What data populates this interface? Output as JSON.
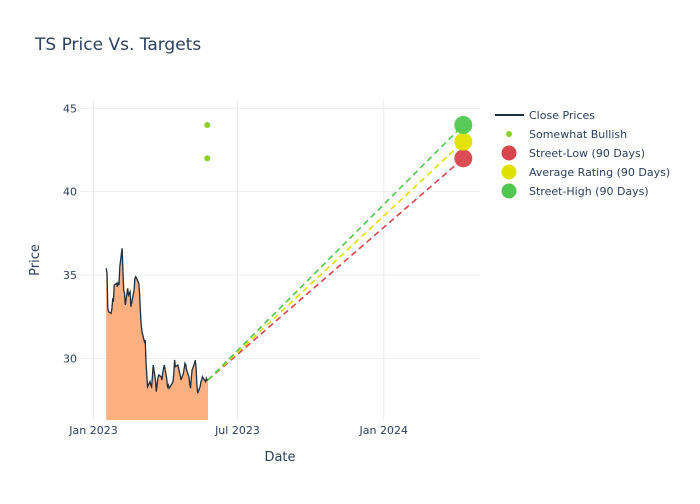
{
  "chart_data": {
    "type": "line",
    "title": "TS Price Vs. Targets",
    "xlabel": "Date",
    "ylabel": "Price",
    "xlim": [
      "2022-12-15",
      "2024-05-01"
    ],
    "ylim": [
      26.3,
      45.5
    ],
    "grid": true,
    "legend_position": "top-right",
    "x_ticks": [
      {
        "date": "2023-01-01",
        "label": "Jan 2023"
      },
      {
        "date": "2023-07-01",
        "label": "Jul 2023"
      },
      {
        "date": "2024-01-01",
        "label": "Jan 2024"
      }
    ],
    "y_ticks": [
      30,
      35,
      40,
      45
    ],
    "close_prices": {
      "name": "Close Prices",
      "color": "#1f2d3d",
      "fill_color": "#ffa26b",
      "x": [
        "2023-01-17",
        "2023-01-18",
        "2023-01-19",
        "2023-01-20",
        "2023-01-23",
        "2023-01-24",
        "2023-01-25",
        "2023-01-26",
        "2023-01-27",
        "2023-01-30",
        "2023-01-31",
        "2023-02-01",
        "2023-02-02",
        "2023-02-03",
        "2023-02-06",
        "2023-02-07",
        "2023-02-08",
        "2023-02-09",
        "2023-02-10",
        "2023-02-13",
        "2023-02-14",
        "2023-02-15",
        "2023-02-16",
        "2023-02-17",
        "2023-02-21",
        "2023-02-22",
        "2023-02-23",
        "2023-02-24",
        "2023-02-27",
        "2023-02-28",
        "2023-03-01",
        "2023-03-02",
        "2023-03-03",
        "2023-03-06",
        "2023-03-07",
        "2023-03-08",
        "2023-03-09",
        "2023-03-10",
        "2023-03-13",
        "2023-03-14",
        "2023-03-15",
        "2023-03-16",
        "2023-03-17",
        "2023-03-20",
        "2023-03-21",
        "2023-03-22",
        "2023-03-23",
        "2023-03-24",
        "2023-03-27",
        "2023-03-28",
        "2023-03-29",
        "2023-03-30",
        "2023-03-31",
        "2023-04-03",
        "2023-04-04",
        "2023-04-05",
        "2023-04-06",
        "2023-04-10",
        "2023-04-11",
        "2023-04-12",
        "2023-04-13",
        "2023-04-14",
        "2023-04-17",
        "2023-04-18",
        "2023-04-19",
        "2023-04-20",
        "2023-04-21",
        "2023-04-24",
        "2023-04-25",
        "2023-04-26",
        "2023-04-27",
        "2023-04-28",
        "2023-05-01",
        "2023-05-02",
        "2023-05-03",
        "2023-05-04",
        "2023-05-05",
        "2023-05-08",
        "2023-05-09",
        "2023-05-10",
        "2023-05-11",
        "2023-05-12",
        "2023-05-15",
        "2023-05-16",
        "2023-05-17",
        "2023-05-18",
        "2023-05-19",
        "2023-05-22",
        "2023-05-23",
        "2023-05-24",
        "2023-05-25"
      ],
      "y": [
        35.4,
        35.1,
        33.0,
        32.8,
        32.7,
        32.9,
        33.5,
        33.4,
        34.4,
        34.5,
        34.3,
        34.6,
        34.4,
        35.5,
        36.6,
        35.3,
        34.1,
        33.9,
        33.2,
        34.2,
        33.8,
        33.9,
        34.0,
        33.1,
        34.1,
        34.8,
        34.9,
        34.8,
        34.5,
        33.9,
        32.8,
        32.0,
        31.6,
        31.0,
        31.1,
        29.8,
        29.0,
        28.3,
        28.6,
        28.4,
        28.3,
        28.9,
        29.6,
        28.7,
        28.0,
        28.4,
        28.8,
        29.0,
        28.9,
        28.7,
        29.1,
        29.4,
        29.6,
        28.8,
        28.3,
        28.4,
        28.2,
        28.5,
        28.6,
        29.1,
        29.9,
        29.5,
        29.6,
        29.4,
        29.2,
        29.0,
        28.7,
        29.1,
        29.4,
        29.7,
        29.6,
        29.3,
        28.9,
        28.5,
        28.2,
        28.8,
        29.3,
        29.7,
        29.9,
        29.4,
        28.4,
        27.9,
        28.3,
        28.6,
        28.7,
        28.9,
        28.8,
        28.6,
        28.8,
        28.7,
        28.7
      ]
    },
    "somewhat_bullish": {
      "name": "Somewhat Bullish",
      "color": "#8cd02c",
      "points": [
        {
          "x": "2023-05-24",
          "y": 44.0
        },
        {
          "x": "2023-05-24",
          "y": 42.0
        }
      ]
    },
    "targets": [
      {
        "name": "Street-Low (90 Days)",
        "color": "#d9434b",
        "start_x": "2023-05-25",
        "start_y": 28.7,
        "end_x": "2024-04-10",
        "end_y": 42.0
      },
      {
        "name": "Average Rating (90 Days)",
        "color": "#e0e000",
        "start_x": "2023-05-25",
        "start_y": 28.7,
        "end_x": "2024-04-10",
        "end_y": 43.0
      },
      {
        "name": "Street-High (90 Days)",
        "color": "#50c850",
        "start_x": "2023-05-25",
        "start_y": 28.7,
        "end_x": "2024-04-10",
        "end_y": 44.0
      }
    ],
    "legend": [
      "Close Prices",
      "Somewhat Bullish",
      "Street-Low (90 Days)",
      "Average Rating (90 Days)",
      "Street-High (90 Days)"
    ]
  }
}
